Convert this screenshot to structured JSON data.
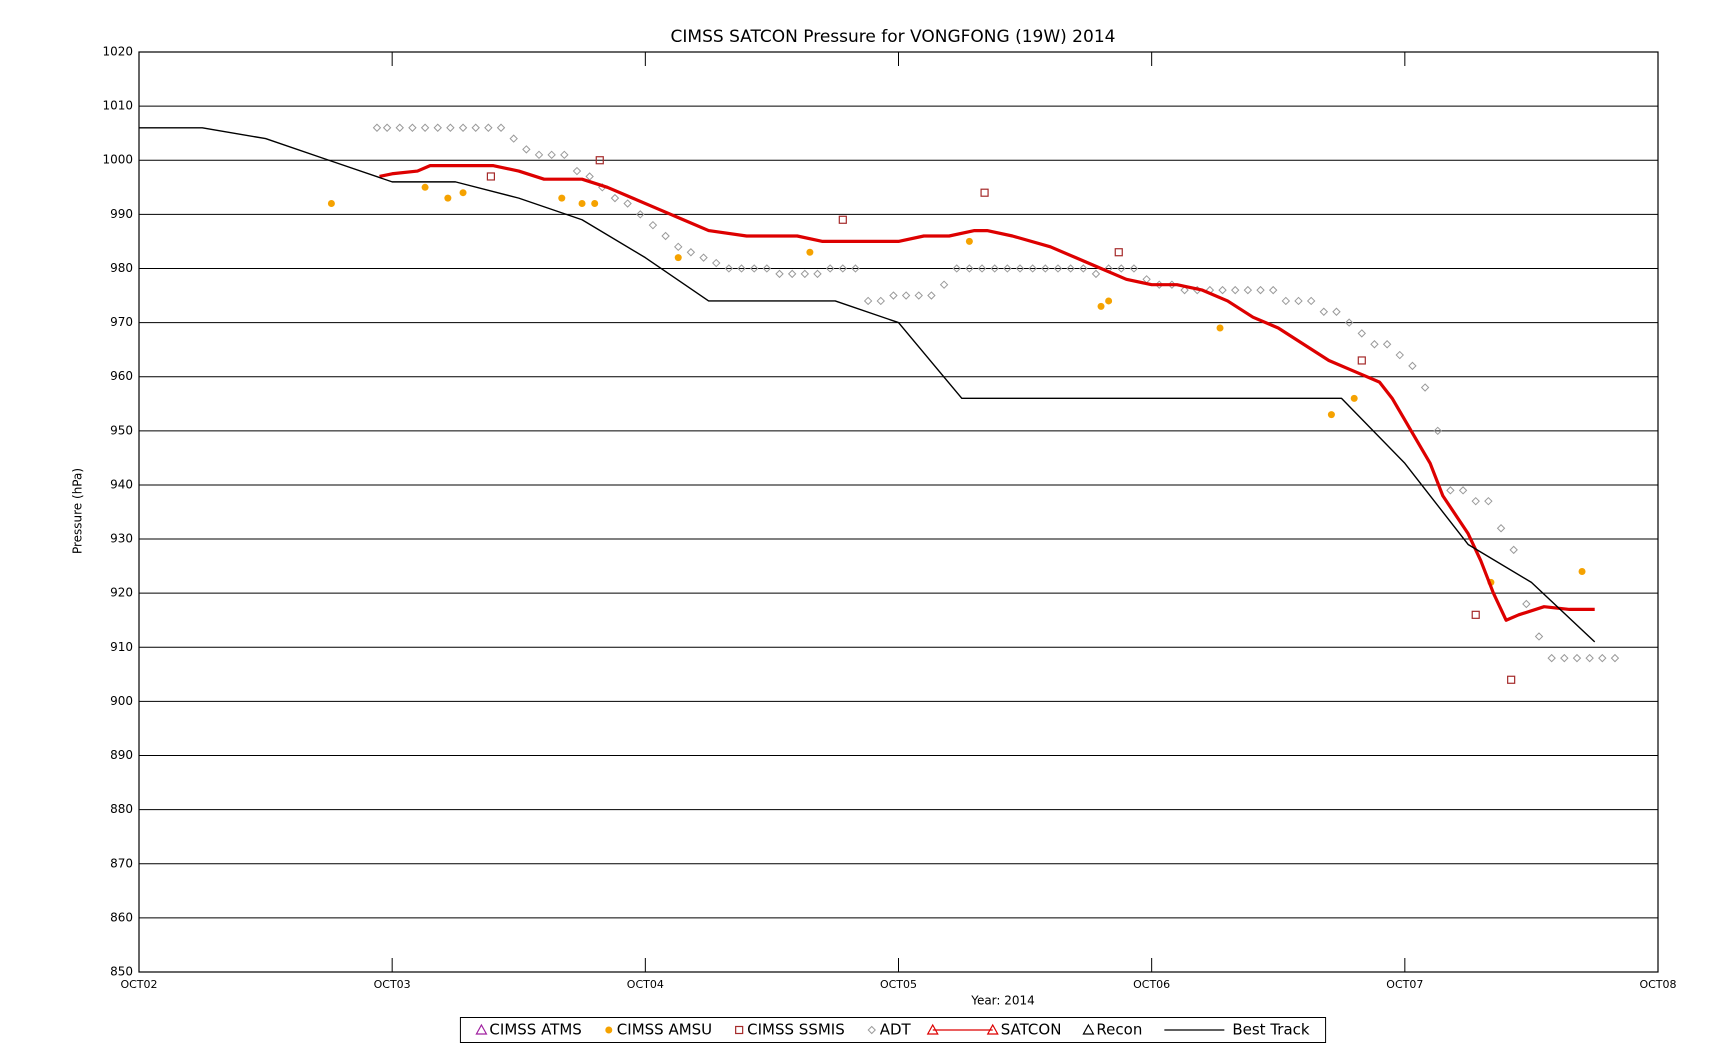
{
  "chart_data": {
    "type": "line",
    "title": "CIMSS SATCON Pressure for VONGFONG (19W) 2014",
    "x_label": "Year: 2014",
    "y_label": "Pressure (hPa)",
    "xlim": [
      2,
      8
    ],
    "xticks": [
      {
        "value": 2,
        "label": "OCT02"
      },
      {
        "value": 3,
        "label": "OCT03"
      },
      {
        "value": 4,
        "label": "OCT04"
      },
      {
        "value": 5,
        "label": "OCT05"
      },
      {
        "value": 6,
        "label": "OCT06"
      },
      {
        "value": 7,
        "label": "OCT07"
      },
      {
        "value": 8,
        "label": "OCT08"
      }
    ],
    "ylim": [
      850,
      1020
    ],
    "yticks": [
      850,
      860,
      870,
      880,
      890,
      900,
      910,
      920,
      930,
      940,
      950,
      960,
      970,
      980,
      990,
      1000,
      1010,
      1020
    ],
    "grid": true,
    "series": [
      {
        "name": "CIMSS ATMS",
        "color": "#a020a0",
        "marker": "triangle",
        "line": false,
        "x": [],
        "values": []
      },
      {
        "name": "CIMSS AMSU",
        "color": "#f5a200",
        "marker": "circle",
        "line": false,
        "x": [
          2.76,
          3.13,
          3.22,
          3.28,
          3.67,
          3.75,
          3.8,
          4.13,
          4.65,
          5.28,
          5.8,
          5.83,
          6.27,
          6.71,
          6.8,
          7.34,
          7.7
        ],
        "values": [
          992,
          995,
          993,
          994,
          993,
          992,
          992,
          982,
          983,
          985,
          973,
          974,
          969,
          953,
          956,
          922,
          924
        ]
      },
      {
        "name": "CIMSS SSMIS",
        "color": "#a52a2a",
        "marker": "square",
        "line": false,
        "x": [
          3.39,
          3.82,
          4.78,
          5.34,
          5.87,
          6.83,
          7.28,
          7.42
        ],
        "values": [
          997,
          1000,
          989,
          994,
          983,
          963,
          916,
          904
        ]
      },
      {
        "name": "ADT",
        "color": "#9a9a9a",
        "marker": "diamond",
        "line": false,
        "x": [
          2.94,
          2.98,
          3.03,
          3.08,
          3.13,
          3.18,
          3.23,
          3.28,
          3.33,
          3.38,
          3.43,
          3.48,
          3.53,
          3.58,
          3.63,
          3.68,
          3.73,
          3.78,
          3.83,
          3.88,
          3.93,
          3.98,
          4.03,
          4.08,
          4.13,
          4.18,
          4.23,
          4.28,
          4.33,
          4.38,
          4.43,
          4.48,
          4.53,
          4.58,
          4.63,
          4.68,
          4.73,
          4.78,
          4.83,
          4.88,
          4.93,
          4.98,
          5.03,
          5.08,
          5.13,
          5.18,
          5.23,
          5.28,
          5.33,
          5.38,
          5.43,
          5.48,
          5.53,
          5.58,
          5.63,
          5.68,
          5.73,
          5.78,
          5.83,
          5.88,
          5.93,
          5.98,
          6.03,
          6.08,
          6.13,
          6.18,
          6.23,
          6.28,
          6.33,
          6.38,
          6.43,
          6.48,
          6.53,
          6.58,
          6.63,
          6.68,
          6.73,
          6.78,
          6.83,
          6.88,
          6.93,
          6.98,
          7.03,
          7.08,
          7.13,
          7.18,
          7.23,
          7.28,
          7.33,
          7.38,
          7.43,
          7.48,
          7.53,
          7.58,
          7.63,
          7.68,
          7.73,
          7.78,
          7.83
        ],
        "values": [
          1006,
          1006,
          1006,
          1006,
          1006,
          1006,
          1006,
          1006,
          1006,
          1006,
          1006,
          1004,
          1002,
          1001,
          1001,
          1001,
          998,
          997,
          995,
          993,
          992,
          990,
          988,
          986,
          984,
          983,
          982,
          981,
          980,
          980,
          980,
          980,
          979,
          979,
          979,
          979,
          980,
          980,
          980,
          974,
          974,
          975,
          975,
          975,
          975,
          977,
          980,
          980,
          980,
          980,
          980,
          980,
          980,
          980,
          980,
          980,
          980,
          979,
          980,
          980,
          980,
          978,
          977,
          977,
          976,
          976,
          976,
          976,
          976,
          976,
          976,
          976,
          974,
          974,
          974,
          972,
          972,
          970,
          968,
          966,
          966,
          964,
          962,
          958,
          950,
          939,
          939,
          937,
          937,
          932,
          928,
          918,
          912,
          908,
          908,
          908,
          908,
          908,
          908
        ]
      },
      {
        "name": "SATCON",
        "color": "#dd0000",
        "marker": "triangle",
        "line": true,
        "x": [
          2.95,
          3.0,
          3.1,
          3.15,
          3.25,
          3.4,
          3.5,
          3.6,
          3.75,
          3.85,
          3.95,
          4.05,
          4.15,
          4.25,
          4.4,
          4.5,
          4.6,
          4.7,
          4.85,
          5.0,
          5.1,
          5.2,
          5.3,
          5.35,
          5.45,
          5.6,
          5.7,
          5.8,
          5.9,
          6.0,
          6.1,
          6.2,
          6.3,
          6.4,
          6.5,
          6.6,
          6.7,
          6.8,
          6.9,
          6.95,
          7.05,
          7.1,
          7.15,
          7.25,
          7.3,
          7.35,
          7.4,
          7.45,
          7.55,
          7.65,
          7.75
        ],
        "values": [
          997,
          997.5,
          998,
          999,
          999,
          999,
          998,
          996.5,
          996.5,
          995,
          993,
          991,
          989,
          987,
          986,
          986,
          986,
          985,
          985,
          985,
          986,
          986,
          987,
          987,
          986,
          984,
          982,
          980,
          978,
          977,
          977,
          976,
          974,
          971,
          969,
          966,
          963,
          961,
          959,
          956,
          948,
          944,
          938,
          931,
          926,
          920,
          915,
          916,
          917.5,
          917,
          917
        ]
      },
      {
        "name": "Recon",
        "color": "#000000",
        "marker": "triangle",
        "line": false,
        "x": [],
        "values": []
      },
      {
        "name": "Best Track",
        "color": "#000000",
        "marker": "none",
        "line": true,
        "x": [
          2.0,
          2.25,
          2.5,
          2.75,
          3.0,
          3.25,
          3.5,
          3.75,
          4.0,
          4.25,
          4.75,
          5.0,
          5.25,
          6.75,
          7.0,
          7.25,
          7.5,
          7.75
        ],
        "values": [
          1006,
          1006,
          1004,
          1000,
          996,
          996,
          993,
          989,
          982,
          974,
          974,
          970,
          956,
          956,
          944,
          929,
          922,
          911
        ]
      }
    ]
  }
}
